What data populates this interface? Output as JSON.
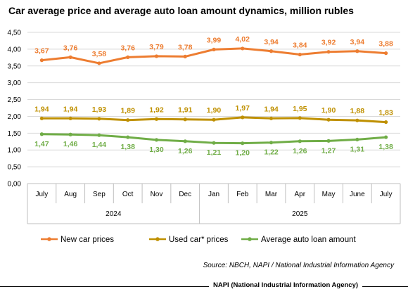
{
  "chart_data": {
    "type": "line",
    "title": "Car average price and average auto loan amount dynamics, million rubles",
    "categories": [
      "July",
      "Aug",
      "Sep",
      "Oct",
      "Nov",
      "Dec",
      "Jan",
      "Feb",
      "Mar",
      "Apr",
      "May",
      "June",
      "July"
    ],
    "year_groups": [
      {
        "label": "2024",
        "span": 6
      },
      {
        "label": "2025",
        "span": 7
      }
    ],
    "ylim": [
      0,
      4.5
    ],
    "yticks": [
      "0,00",
      "0,50",
      "1,00",
      "1,50",
      "2,00",
      "2,50",
      "3,00",
      "3,50",
      "4,00",
      "4,50"
    ],
    "grid": true,
    "legend_position": "bottom",
    "series": [
      {
        "name": "New car prices",
        "color": "#ED7D31",
        "values": [
          3.67,
          3.76,
          3.58,
          3.76,
          3.79,
          3.78,
          3.99,
          4.02,
          3.94,
          3.84,
          3.92,
          3.94,
          3.88
        ],
        "labels": [
          "3,67",
          "3,76",
          "3,58",
          "3,76",
          "3,79",
          "3,78",
          "3,99",
          "4,02",
          "3,94",
          "3,84",
          "3,92",
          "3,94",
          "3,88"
        ]
      },
      {
        "name": "Used car* prices",
        "color": "#BF9000",
        "values": [
          1.94,
          1.94,
          1.93,
          1.89,
          1.92,
          1.91,
          1.9,
          1.97,
          1.94,
          1.95,
          1.9,
          1.88,
          1.83
        ],
        "labels": [
          "1,94",
          "1,94",
          "1,93",
          "1,89",
          "1,92",
          "1,91",
          "1,90",
          "1,97",
          "1,94",
          "1,95",
          "1,90",
          "1,88",
          "1,83"
        ]
      },
      {
        "name": "Average auto loan amount",
        "color": "#70AD47",
        "values": [
          1.47,
          1.46,
          1.44,
          1.38,
          1.3,
          1.26,
          1.21,
          1.2,
          1.22,
          1.26,
          1.27,
          1.31,
          1.38
        ],
        "labels": [
          "1,47",
          "1,46",
          "1,44",
          "1,38",
          "1,30",
          "1,26",
          "1,21",
          "1,20",
          "1,22",
          "1,26",
          "1,27",
          "1,31",
          "1,38"
        ]
      }
    ]
  },
  "source_note": "Source: NBCH, NAPI / National Industrial Information Agency",
  "footer_label": "NAPI (National Industrial Information Agency)"
}
